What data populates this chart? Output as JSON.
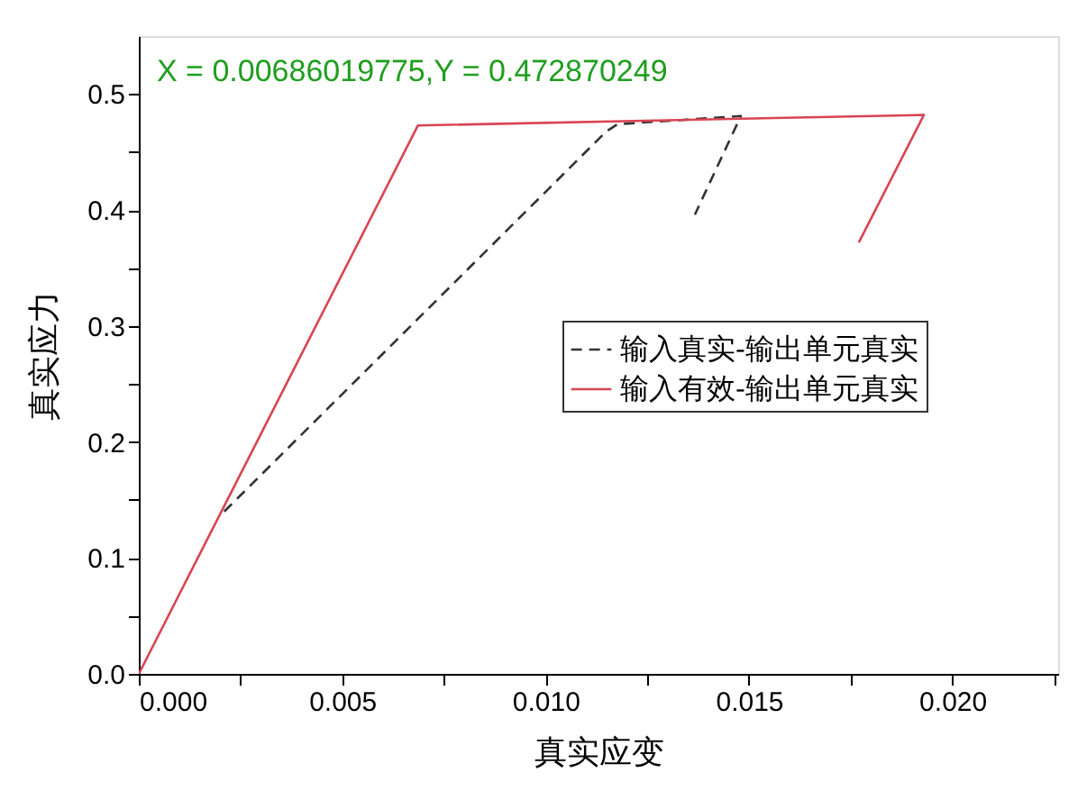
{
  "chart_data": {
    "type": "line",
    "xlabel": "真实应变",
    "ylabel": "真实应力",
    "xlim": [
      0,
      0.0226
    ],
    "ylim": [
      0,
      0.55
    ],
    "xticks": [
      "0.000",
      {
        "value": 0.0025,
        "label": null
      },
      {
        "value": 0.005,
        "label": "0.005"
      },
      {
        "value": 0.0075,
        "label": null
      },
      {
        "value": 0.01,
        "label": "0.010"
      },
      {
        "value": 0.0125,
        "label": null
      },
      {
        "value": 0.015,
        "label": "0.015"
      },
      {
        "value": 0.0175,
        "label": null
      },
      {
        "value": 0.02,
        "label": "0.020"
      },
      {
        "value": 0.0225,
        "label": null
      }
    ],
    "yticks": [
      {
        "value": 0,
        "label": "0.0"
      },
      {
        "value": 0.05,
        "label": null
      },
      0.1,
      {
        "value": 0.15,
        "label": null
      },
      0.2,
      {
        "value": 0.25,
        "label": null
      },
      0.3,
      {
        "value": 0.35,
        "label": null
      },
      0.4,
      {
        "value": 0.45,
        "label": null
      },
      0.5
    ],
    "series": [
      {
        "name": "输入真实-输出单元真实",
        "color": "#333333",
        "line_style": "dashed",
        "x": [
          0.0021,
          0.0115,
          0.01177,
          0.0148,
          0.01367
        ],
        "values": [
          0.14,
          0.468,
          0.474,
          0.481,
          0.396
        ]
      },
      {
        "name": "输入有效-输出单元真实",
        "color": "#d94452",
        "line_style": "solid",
        "x": [
          0,
          0.00686019775,
          0.0193,
          0.0177
        ],
        "values": [
          0,
          0.472870249,
          0.482,
          0.372
        ]
      }
    ],
    "annotations": [
      "X = 0.00686019775,Y = 0.472870249"
    ],
    "legend": "right",
    "grid": false,
    "marker": "none"
  }
}
